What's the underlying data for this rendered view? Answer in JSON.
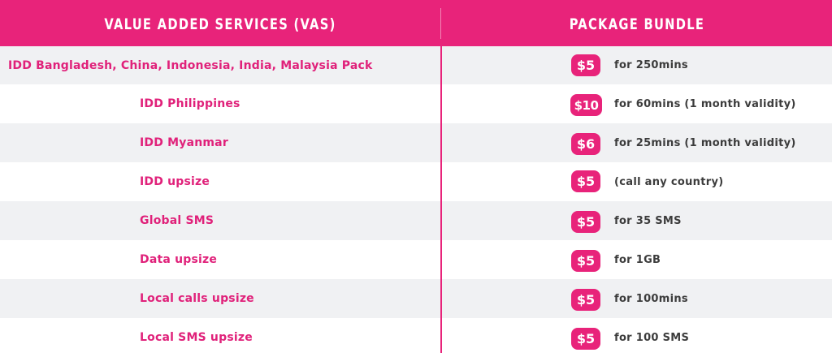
{
  "header": {
    "services_label": "VALUE ADDED SERVICES (VAS)",
    "bundle_label": "PACKAGE BUNDLE"
  },
  "rows": [
    {
      "service": "IDD Bangladesh, China, Indonesia, India, Malaysia Pack",
      "price": "$5",
      "bundle": "for 250mins"
    },
    {
      "service": "IDD Philippines",
      "price": "$10",
      "bundle": "for 60mins (1 month validity)"
    },
    {
      "service": "IDD Myanmar",
      "price": "$6",
      "bundle": "for 25mins (1 month validity)"
    },
    {
      "service": "IDD upsize",
      "price": "$5",
      "bundle": "(call any country)"
    },
    {
      "service": "Global SMS",
      "price": "$5",
      "bundle": "for 35 SMS"
    },
    {
      "service": "Data upsize",
      "price": "$5",
      "bundle": "for 1GB"
    },
    {
      "service": "Local calls upsize",
      "price": "$5",
      "bundle": "for 100mins"
    },
    {
      "service": "Local SMS upsize",
      "price": "$5",
      "bundle": "for 100 SMS"
    }
  ],
  "colors": {
    "accent": "#e8237a",
    "row_shade": "#f0f1f3",
    "bundle_text": "#3c3c3c"
  }
}
